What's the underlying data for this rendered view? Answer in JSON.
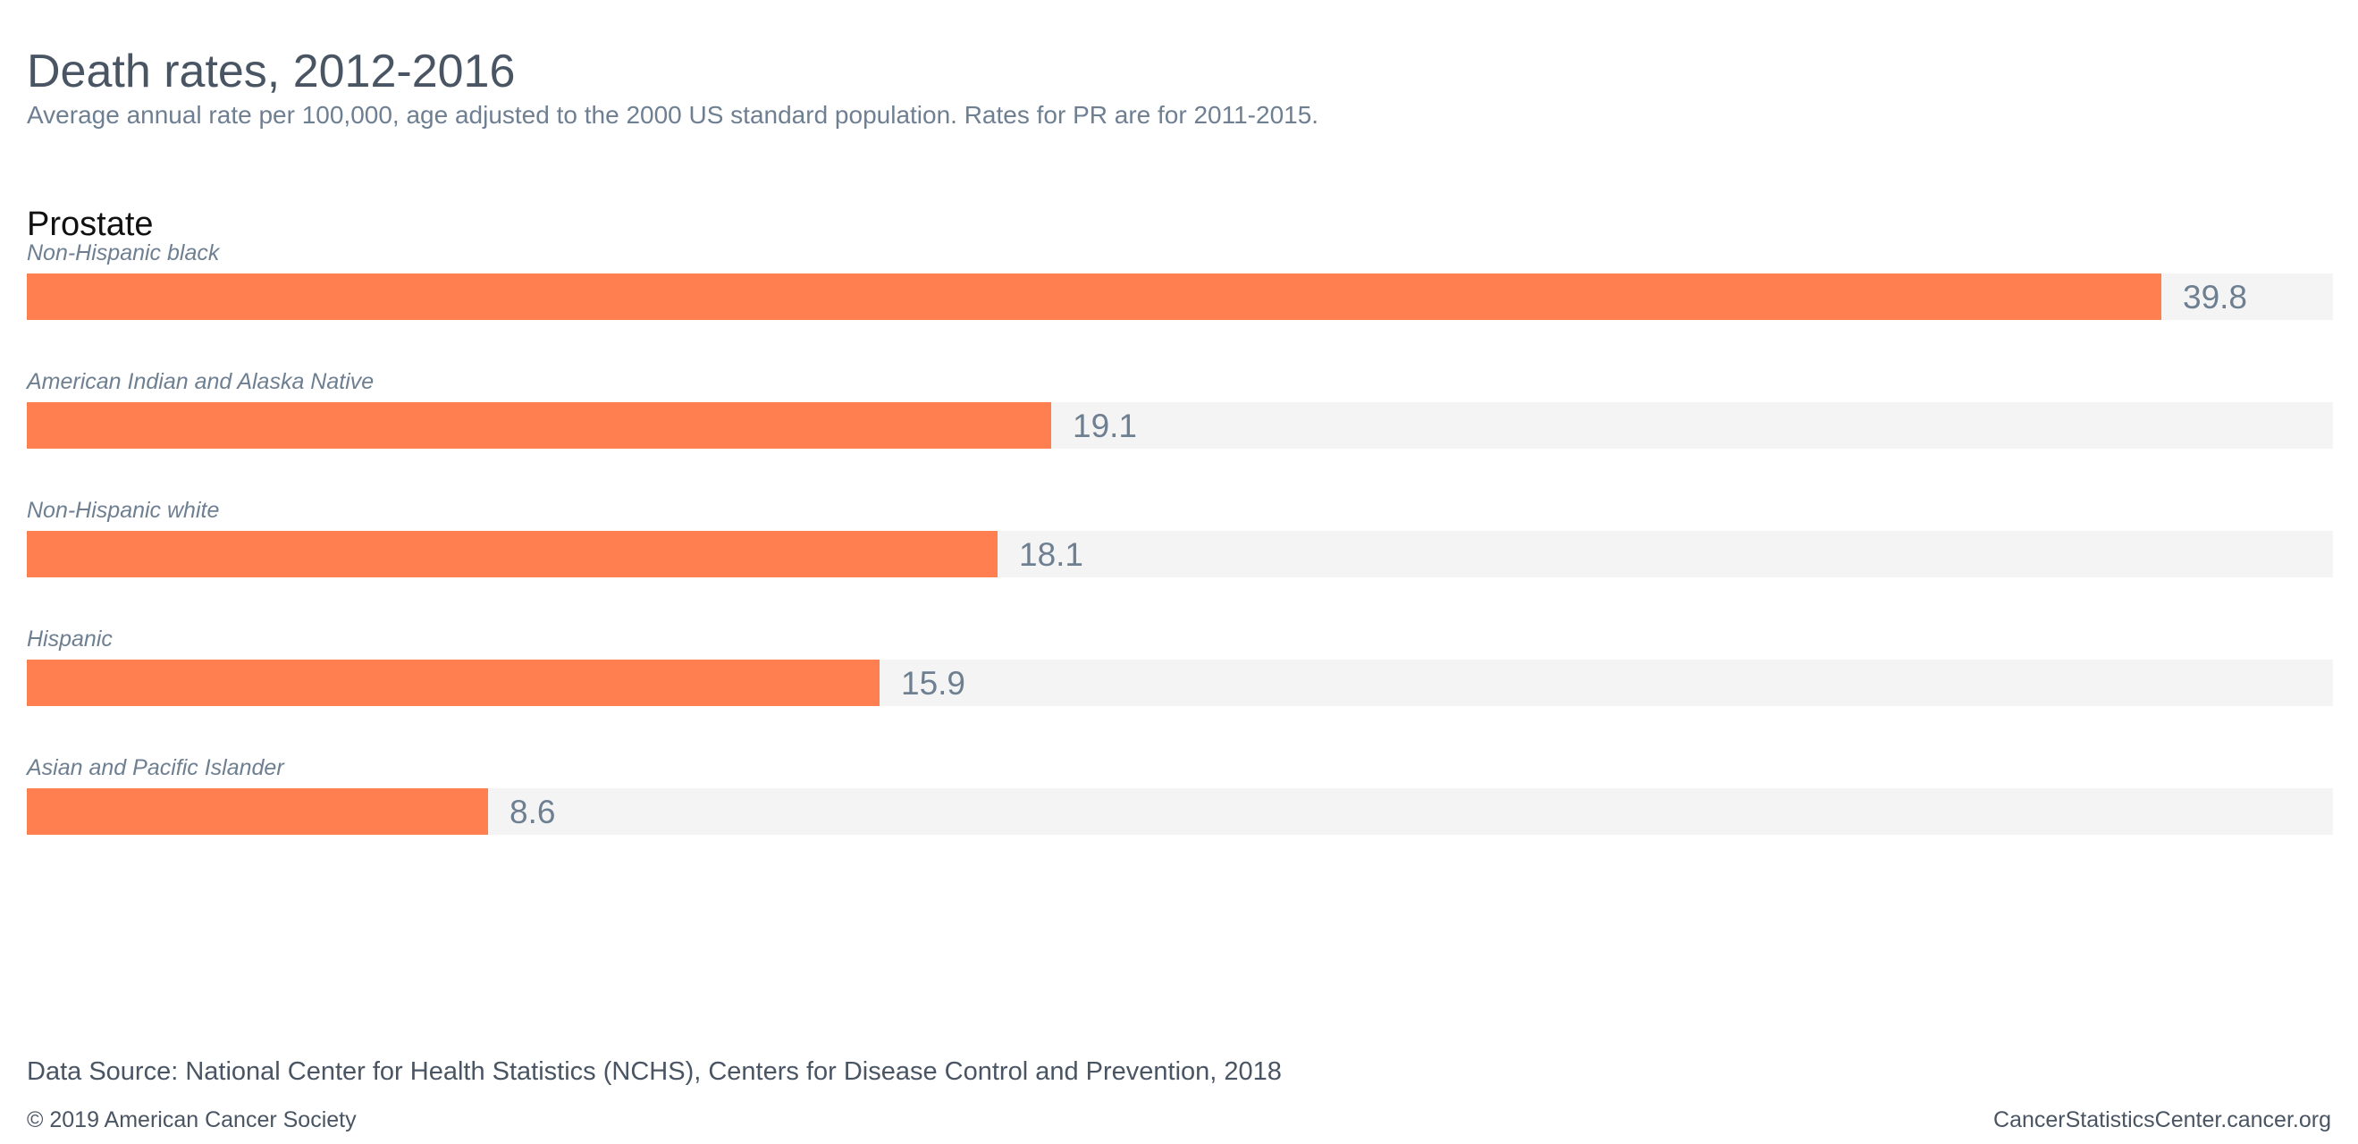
{
  "header": {
    "title": "Death rates, 2012-2016",
    "subtitle": "Average annual rate per 100,000, age adjusted to the 2000 US standard population. Rates for PR are for 2011-2015."
  },
  "chart_data": {
    "type": "bar",
    "orientation": "horizontal",
    "title": "Prostate",
    "categories": [
      "Non-Hispanic black",
      "American Indian and Alaska Native",
      "Non-Hispanic white",
      "Hispanic",
      "Asian and Pacific Islander"
    ],
    "values": [
      39.8,
      19.1,
      18.1,
      15.9,
      8.6
    ],
    "xlim": [
      0,
      43
    ],
    "grid": false,
    "legend": "none",
    "colors": {
      "bar": "#ff7f50",
      "track": "#f4f4f4",
      "label": "#6e7f91"
    }
  },
  "footer": {
    "source": "Data Source: National Center for Health Statistics (NCHS), Centers for Disease Control and Prevention, 2018",
    "copyright": "© 2019 American Cancer Society",
    "site": "CancerStatisticsCenter.cancer.org"
  }
}
